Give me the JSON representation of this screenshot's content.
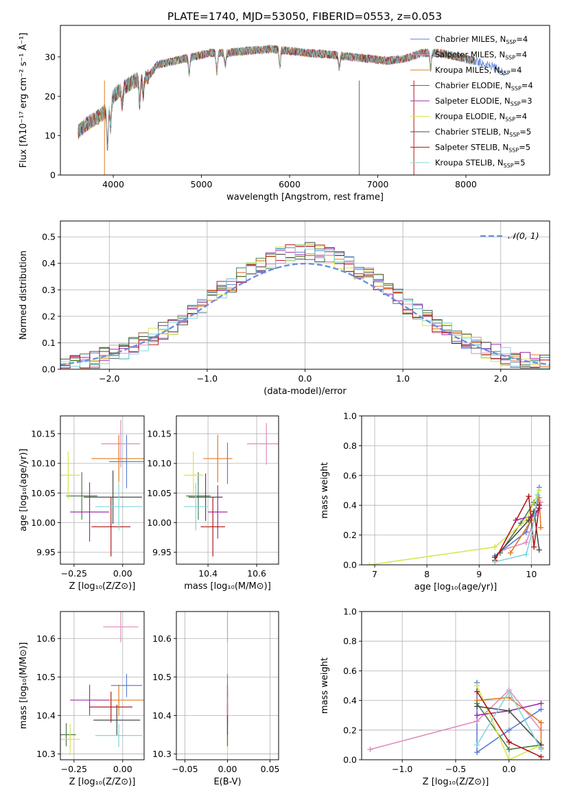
{
  "figure": {
    "title": "PLATE=1740, MJD=53050, FIBERID=0553, z=0.053"
  },
  "chart_data": [
    {
      "id": "spectrum",
      "type": "line",
      "xlabel": "wavelength [Angstrom, rest frame]",
      "ylabel": "Flux [fλ10⁻¹⁷ erg cm⁻² s⁻¹ Å⁻¹]",
      "xlim": [
        3400,
        8950
      ],
      "ylim": [
        0,
        38
      ],
      "xticks": [
        4000,
        5000,
        6000,
        7000,
        8000
      ],
      "yticks": [
        0,
        10,
        20,
        30
      ],
      "grid": false,
      "legend_position": "top-right",
      "continuum": {
        "x": [
          3600,
          3700,
          3850,
          3950,
          4000,
          4100,
          4250,
          4400,
          4500,
          4700,
          4900,
          5100,
          5300,
          5500,
          5800,
          6000,
          6200,
          6500,
          6700,
          6900,
          7100,
          7300,
          7500,
          7700,
          7900,
          8100,
          8300,
          8450
        ],
        "y": [
          11,
          13,
          15,
          17,
          20,
          22,
          24,
          25,
          28,
          29,
          30,
          31,
          31,
          31.5,
          32,
          31.5,
          31,
          30.5,
          30,
          29.5,
          29,
          29.5,
          31,
          31,
          30,
          29,
          27.5,
          26
        ]
      },
      "series": [
        {
          "name": "Chabrier MILES, N_SSP=4",
          "color": "#5b7fd6"
        },
        {
          "name": "Salpeter MILES, N_SSP=4",
          "color": "#e08bbb"
        },
        {
          "name": "Kroupa MILES, N_SSP=4",
          "color": "#e07b20"
        },
        {
          "name": "Chabrier ELODIE, N_SSP=4",
          "color": "#4a7a4a"
        },
        {
          "name": "Salpeter ELODIE, N_SSP=3",
          "color": "#9a2aaa"
        },
        {
          "name": "Kroupa ELODIE, N_SSP=4",
          "color": "#d6e64a"
        },
        {
          "name": "Chabrier STELIB, N_SSP=5",
          "color": "#4a4a4a"
        },
        {
          "name": "Salpeter STELIB, N_SSP=5",
          "color": "#b01818"
        },
        {
          "name": "Kroupa STELIB, N_SSP=5",
          "color": "#7fd6dc"
        }
      ]
    },
    {
      "id": "residuals",
      "type": "histogram",
      "xlabel": "(data-model)/error",
      "ylabel": "Normed distribution",
      "xlim": [
        -2.5,
        2.5
      ],
      "ylim": [
        0,
        0.56
      ],
      "xticks": [
        -2,
        -1,
        0,
        1,
        2
      ],
      "yticks": [
        0.0,
        0.1,
        0.2,
        0.3,
        0.4,
        0.5
      ],
      "grid": true,
      "legend_position": "top-right",
      "reference_curve_label": "𝒩(0, 1)",
      "bin_width": 0.1
    },
    {
      "id": "age-vs-Z",
      "type": "scatter",
      "xlabel": "Z [log₁₀(Z/Z⊙)]",
      "ylabel": "age  [log₁₀(age/yr)]",
      "xlim": [
        -0.32,
        0.11
      ],
      "ylim": [
        9.93,
        10.18
      ],
      "xticks": [
        -0.25,
        0.0
      ],
      "yticks": [
        9.95,
        10.0,
        10.05,
        10.1,
        10.15
      ],
      "grid": true,
      "points": [
        {
          "c": "#5b7fd6",
          "x": 0.02,
          "xerr": 0.09,
          "y": 10.103,
          "yerr": 0.045
        },
        {
          "c": "#e08bbb",
          "x": -0.01,
          "xerr": 0.1,
          "y": 10.133,
          "yerr": 0.04
        },
        {
          "c": "#e07b20",
          "x": -0.02,
          "xerr": 0.14,
          "y": 10.108,
          "yerr": 0.04
        },
        {
          "c": "#4a7a4a",
          "x": -0.21,
          "xerr": 0.08,
          "y": 10.045,
          "yerr": 0.04
        },
        {
          "c": "#9a2aaa",
          "x": -0.17,
          "xerr": 0.1,
          "y": 10.018,
          "yerr": 0.05
        },
        {
          "c": "#d6e64a",
          "x": -0.28,
          "xerr": 0.06,
          "y": 10.08,
          "yerr": 0.04
        },
        {
          "c": "#4a4a4a",
          "x": -0.05,
          "xerr": 0.15,
          "y": 10.043,
          "yerr": 0.045
        },
        {
          "c": "#b01818",
          "x": -0.06,
          "xerr": 0.1,
          "y": 9.993,
          "yerr": 0.05
        },
        {
          "c": "#7fd6dc",
          "x": -0.02,
          "xerr": 0.12,
          "y": 10.027,
          "yerr": 0.04
        }
      ]
    },
    {
      "id": "age-vs-mass",
      "type": "scatter",
      "xlabel": "mass [log₁₀(M/M⊙)]",
      "ylabel": "",
      "xlim": [
        10.27,
        10.69
      ],
      "ylim": [
        9.93,
        10.18
      ],
      "xticks": [
        10.4,
        10.6
      ],
      "yticks": [
        9.95,
        10.0,
        10.05,
        10.1,
        10.15
      ],
      "grid": true,
      "points": [
        {
          "c": "#5b7fd6",
          "x": 10.48,
          "xerr": 0.0,
          "y": 10.1,
          "yerr": 0.035
        },
        {
          "c": "#e08bbb",
          "x": 10.64,
          "xerr": 0.08,
          "y": 10.133,
          "yerr": 0.035
        },
        {
          "c": "#e07b20",
          "x": 10.44,
          "xerr": 0.06,
          "y": 10.108,
          "yerr": 0.04
        },
        {
          "c": "#4a7a4a",
          "x": 10.36,
          "xerr": 0.05,
          "y": 10.045,
          "yerr": 0.04
        },
        {
          "c": "#9a2aaa",
          "x": 10.44,
          "xerr": 0.04,
          "y": 10.018,
          "yerr": 0.045
        },
        {
          "c": "#d6e64a",
          "x": 10.34,
          "xerr": 0.04,
          "y": 10.08,
          "yerr": 0.04
        },
        {
          "c": "#4a4a4a",
          "x": 10.39,
          "xerr": 0.07,
          "y": 10.043,
          "yerr": 0.04
        },
        {
          "c": "#b01818",
          "x": 10.42,
          "xerr": 0.05,
          "y": 9.993,
          "yerr": 0.05
        },
        {
          "c": "#7fd6dc",
          "x": 10.35,
          "xerr": 0.05,
          "y": 10.027,
          "yerr": 0.04
        }
      ]
    },
    {
      "id": "massweight-vs-age",
      "type": "line",
      "xlabel": "age  [log₁₀(age/yr)]",
      "ylabel": "mass weight",
      "xlim": [
        6.75,
        10.35
      ],
      "ylim": [
        0,
        1
      ],
      "xticks": [
        7,
        8,
        9,
        10
      ],
      "yticks": [
        0.0,
        0.2,
        0.4,
        0.6,
        0.8,
        1.0
      ],
      "grid": true,
      "series": [
        {
          "c": "#5b7fd6",
          "x": [
            9.3,
            9.9,
            10.1,
            10.15
          ],
          "y": [
            0.06,
            0.22,
            0.4,
            0.52
          ]
        },
        {
          "c": "#e08bbb",
          "x": [
            9.45,
            9.9,
            10.1,
            10.18
          ],
          "y": [
            0.1,
            0.15,
            0.35,
            0.42
          ]
        },
        {
          "c": "#e07b20",
          "x": [
            9.6,
            10.0,
            10.15,
            10.18
          ],
          "y": [
            0.08,
            0.3,
            0.45,
            0.25
          ]
        },
        {
          "c": "#4a7a4a",
          "x": [
            9.4,
            9.8,
            10.05,
            10.15
          ],
          "y": [
            0.08,
            0.28,
            0.42,
            0.4
          ]
        },
        {
          "c": "#9a2aaa",
          "x": [
            9.7,
            10.05,
            10.15
          ],
          "y": [
            0.3,
            0.33,
            0.38
          ]
        },
        {
          "c": "#d6e64a",
          "x": [
            6.9,
            9.3,
            9.9,
            10.15
          ],
          "y": [
            0.0,
            0.12,
            0.3,
            0.5
          ]
        },
        {
          "c": "#4a4a4a",
          "x": [
            9.3,
            9.95,
            10.05,
            10.15
          ],
          "y": [
            0.05,
            0.3,
            0.36,
            0.1
          ]
        },
        {
          "c": "#b01818",
          "x": [
            9.3,
            9.95,
            10.05,
            10.15
          ],
          "y": [
            0.03,
            0.46,
            0.12,
            0.4
          ]
        },
        {
          "c": "#7fd6dc",
          "x": [
            9.3,
            9.9,
            10.0,
            10.12
          ],
          "y": [
            0.02,
            0.07,
            0.2,
            0.47
          ]
        }
      ]
    },
    {
      "id": "mass-vs-Z",
      "type": "scatter",
      "xlabel": "Z [log₁₀(Z/Z⊙)]",
      "ylabel": "mass [log₁₀(M/M⊙)]",
      "xlim": [
        -0.32,
        0.11
      ],
      "ylim": [
        10.285,
        10.67
      ],
      "xticks": [
        -0.25,
        0.0
      ],
      "yticks": [
        10.3,
        10.4,
        10.5,
        10.6
      ],
      "grid": true,
      "points": [
        {
          "c": "#5b7fd6",
          "x": 0.02,
          "xerr": 0.08,
          "y": 10.478,
          "yerr": 0.03
        },
        {
          "c": "#e08bbb",
          "x": -0.01,
          "xerr": 0.09,
          "y": 10.63,
          "yerr": 0.04
        },
        {
          "c": "#e07b20",
          "x": -0.02,
          "xerr": 0.13,
          "y": 10.44,
          "yerr": 0.04
        },
        {
          "c": "#4a7a4a",
          "x": -0.29,
          "xerr": 0.05,
          "y": 10.35,
          "yerr": 0.03
        },
        {
          "c": "#9a2aaa",
          "x": -0.17,
          "xerr": 0.1,
          "y": 10.44,
          "yerr": 0.04
        },
        {
          "c": "#d6e64a",
          "x": -0.27,
          "xerr": 0.05,
          "y": 10.338,
          "yerr": 0.04
        },
        {
          "c": "#4a4a4a",
          "x": -0.03,
          "xerr": 0.12,
          "y": 10.388,
          "yerr": 0.04
        },
        {
          "c": "#b01818",
          "x": -0.06,
          "xerr": 0.11,
          "y": 10.422,
          "yerr": 0.04
        },
        {
          "c": "#7fd6dc",
          "x": -0.02,
          "xerr": 0.12,
          "y": 10.348,
          "yerr": 0.03
        }
      ]
    },
    {
      "id": "mass-vs-EBV",
      "type": "scatter",
      "xlabel": "E(B-V)",
      "ylabel": "",
      "xlim": [
        -0.06,
        0.06
      ],
      "ylim": [
        10.285,
        10.67
      ],
      "xticks": [
        -0.05,
        0.0,
        0.05
      ],
      "yticks": [
        10.3,
        10.4,
        10.5,
        10.6
      ],
      "grid": true,
      "points": [
        {
          "c": "#d6e64a",
          "x": 0.0,
          "y": 10.34,
          "yerr": 0.04
        },
        {
          "c": "#7fd6dc",
          "x": 0.0,
          "y": 10.35,
          "yerr": 0.03
        },
        {
          "c": "#4a7a4a",
          "x": 0.0,
          "y": 10.36,
          "yerr": 0.04
        },
        {
          "c": "#4a4a4a",
          "x": 0.0,
          "y": 10.39,
          "yerr": 0.04
        },
        {
          "c": "#b01818",
          "x": 0.0,
          "y": 10.42,
          "yerr": 0.04
        },
        {
          "c": "#9a2aaa",
          "x": 0.0,
          "y": 10.44,
          "yerr": 0.04
        },
        {
          "c": "#e07b20",
          "x": 0.0,
          "y": 10.44,
          "yerr": 0.04
        },
        {
          "c": "#5b7fd6",
          "x": 0.0,
          "y": 10.478,
          "yerr": 0.03
        },
        {
          "c": "#e08bbb",
          "x": 0.0,
          "y": 10.63,
          "yerr": 0.04
        }
      ]
    },
    {
      "id": "massweight-vs-Z",
      "type": "line",
      "xlabel": "Z [log₁₀(Z/Z⊙)]",
      "ylabel": "mass weight",
      "xlim": [
        -1.38,
        0.38
      ],
      "ylim": [
        0,
        1
      ],
      "xticks": [
        -1.0,
        -0.5,
        0.0
      ],
      "yticks": [
        0.0,
        0.2,
        0.4,
        0.6,
        0.8,
        1.0
      ],
      "grid": true,
      "series": [
        {
          "c": "#5b7fd6",
          "x": [
            -0.3,
            -0.3,
            0.0,
            0.3
          ],
          "y": [
            0.52,
            0.05,
            0.2,
            0.34
          ]
        },
        {
          "c": "#e08bbb",
          "x": [
            -1.3,
            -0.3,
            0.0,
            0.3
          ],
          "y": [
            0.07,
            0.26,
            0.47,
            0.2
          ]
        },
        {
          "c": "#e07b20",
          "x": [
            -0.3,
            0.0,
            0.3,
            0.3
          ],
          "y": [
            0.4,
            0.42,
            0.25,
            0.08
          ]
        },
        {
          "c": "#4a7a4a",
          "x": [
            -0.3,
            0.0,
            0.3
          ],
          "y": [
            0.38,
            0.07,
            0.1
          ]
        },
        {
          "c": "#9a2aaa",
          "x": [
            -0.3,
            0.0,
            0.3
          ],
          "y": [
            0.3,
            0.33,
            0.38
          ]
        },
        {
          "c": "#d6e64a",
          "x": [
            -0.3,
            0.0,
            0.3
          ],
          "y": [
            0.5,
            0.0,
            0.1
          ]
        },
        {
          "c": "#4a4a4a",
          "x": [
            -0.3,
            0.0,
            0.3
          ],
          "y": [
            0.36,
            0.33,
            0.1
          ]
        },
        {
          "c": "#b01818",
          "x": [
            -0.3,
            0.0,
            0.3
          ],
          "y": [
            0.46,
            0.12,
            0.02
          ]
        },
        {
          "c": "#7fd6dc",
          "x": [
            -0.3,
            0.0,
            0.3
          ],
          "y": [
            0.1,
            0.46,
            0.07
          ]
        }
      ]
    }
  ]
}
